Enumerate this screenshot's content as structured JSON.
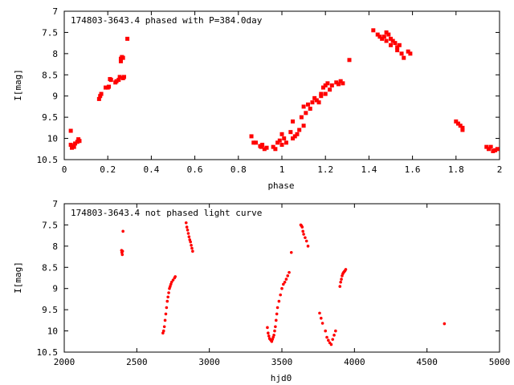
{
  "chart_data": [
    {
      "type": "scatter",
      "title": "174803-3643.4 phased with P=384.0day",
      "xlabel": "phase",
      "ylabel": "I[mag]",
      "xlim": [
        0,
        2
      ],
      "ylim": [
        10.5,
        7
      ],
      "y_inverted": true,
      "grid": false,
      "xticks": [
        "0",
        "0.2",
        "0.4",
        "0.6",
        "0.8",
        "1",
        "1.2",
        "1.4",
        "1.6",
        "1.8",
        "2"
      ],
      "yticks": [
        "7",
        "7.5",
        "8",
        "8.5",
        "9",
        "9.5",
        "10",
        "10.5"
      ],
      "marker_color": "#ff0000",
      "marker": "square",
      "series": [
        {
          "x": [
            0.03,
            0.03,
            0.035,
            0.04,
            0.045,
            0.05,
            0.06,
            0.065,
            0.07,
            0.16,
            0.165,
            0.17,
            0.19,
            0.2,
            0.205,
            0.21,
            0.215,
            0.235,
            0.24,
            0.25,
            0.255,
            0.26,
            0.26,
            0.265,
            0.27,
            0.27,
            0.275,
            0.29,
            0.86,
            0.87,
            0.88,
            0.9,
            0.905,
            0.91,
            0.92,
            0.93,
            0.96,
            0.97,
            0.98,
            0.99,
            1.0,
            1.0,
            1.01,
            1.02,
            1.04,
            1.05,
            1.05,
            1.06,
            1.07,
            1.08,
            1.09,
            1.1,
            1.1,
            1.11,
            1.12,
            1.13,
            1.14,
            1.15,
            1.16,
            1.17,
            1.18,
            1.18,
            1.19,
            1.2,
            1.2,
            1.21,
            1.22,
            1.23,
            1.25,
            1.26,
            1.27,
            1.28,
            1.31,
            1.42,
            1.44,
            1.45,
            1.46,
            1.47,
            1.48,
            1.48,
            1.49,
            1.5,
            1.5,
            1.51,
            1.52,
            1.53,
            1.53,
            1.54,
            1.55,
            1.56,
            1.58,
            1.59,
            1.8,
            1.81,
            1.82,
            1.83,
            1.83,
            1.94,
            1.95,
            1.96,
            1.97,
            1.98,
            1.99
          ],
          "y": [
            9.82,
            10.15,
            10.22,
            10.18,
            10.2,
            10.12,
            10.08,
            10.02,
            10.06,
            9.07,
            9.0,
            8.95,
            8.8,
            8.8,
            8.78,
            8.6,
            8.62,
            8.68,
            8.65,
            8.62,
            8.55,
            8.18,
            8.12,
            8.08,
            8.1,
            8.58,
            8.55,
            7.65,
            9.95,
            10.1,
            10.1,
            10.18,
            10.2,
            10.15,
            10.25,
            10.22,
            10.2,
            10.25,
            10.1,
            10.05,
            9.9,
            10.15,
            10.0,
            10.1,
            9.85,
            9.6,
            10.0,
            9.95,
            9.9,
            9.8,
            9.5,
            9.25,
            9.7,
            9.4,
            9.2,
            9.3,
            9.15,
            9.05,
            9.1,
            9.15,
            8.95,
            9.0,
            8.8,
            8.75,
            8.95,
            8.7,
            8.85,
            8.75,
            8.68,
            8.72,
            8.65,
            8.7,
            8.15,
            7.45,
            7.55,
            7.6,
            7.65,
            7.6,
            7.5,
            7.7,
            7.55,
            7.65,
            7.8,
            7.7,
            7.75,
            7.85,
            7.92,
            7.8,
            8.0,
            8.1,
            7.95,
            8.0,
            9.6,
            9.65,
            9.7,
            9.75,
            9.8,
            10.2,
            10.25,
            10.2,
            10.3,
            10.28,
            10.25
          ]
        }
      ]
    },
    {
      "type": "scatter",
      "title": "174803-3643.4 not phased light curve",
      "xlabel": "hjd0",
      "ylabel": "I[mag]",
      "xlim": [
        2000,
        5000
      ],
      "ylim": [
        10.5,
        7
      ],
      "y_inverted": true,
      "grid": false,
      "xticks": [
        "2000",
        "2500",
        "3000",
        "3500",
        "4000",
        "4500",
        "5000"
      ],
      "yticks": [
        "7",
        "7.5",
        "8",
        "8.5",
        "9",
        "9.5",
        "10",
        "10.5"
      ],
      "marker_color": "#ff0000",
      "marker": "dot",
      "series": [
        {
          "x": [
            2395,
            2397,
            2400,
            2402,
            2405,
            2680,
            2685,
            2690,
            2695,
            2700,
            2705,
            2710,
            2715,
            2720,
            2725,
            2730,
            2735,
            2740,
            2750,
            2760,
            2765,
            2840,
            2845,
            2850,
            2855,
            2860,
            2865,
            2870,
            2875,
            2880,
            2885,
            3400,
            3405,
            3410,
            3415,
            3420,
            3425,
            3430,
            3435,
            3440,
            3445,
            3450,
            3455,
            3460,
            3465,
            3470,
            3480,
            3490,
            3500,
            3510,
            3520,
            3530,
            3540,
            3550,
            3565,
            3630,
            3635,
            3640,
            3645,
            3650,
            3660,
            3670,
            3680,
            3760,
            3770,
            3780,
            3800,
            3810,
            3820,
            3830,
            3840,
            3850,
            3860,
            3870,
            3900,
            3905,
            3910,
            3915,
            3920,
            3925,
            3930,
            3935,
            3940,
            4620
          ],
          "y": [
            8.1,
            8.15,
            8.2,
            8.12,
            7.65,
            10.05,
            10.0,
            9.9,
            9.75,
            9.6,
            9.45,
            9.3,
            9.2,
            9.1,
            9.0,
            8.95,
            8.9,
            8.85,
            8.8,
            8.75,
            8.72,
            7.45,
            7.55,
            7.62,
            7.7,
            7.78,
            7.85,
            7.9,
            7.98,
            8.05,
            8.12,
            9.92,
            10.05,
            10.12,
            10.18,
            10.2,
            10.22,
            10.25,
            10.2,
            10.15,
            10.1,
            10.0,
            9.9,
            9.75,
            9.6,
            9.45,
            9.3,
            9.15,
            9.0,
            8.9,
            8.85,
            8.78,
            8.7,
            8.62,
            8.15,
            7.5,
            7.52,
            7.55,
            7.65,
            7.72,
            7.8,
            7.88,
            8.0,
            9.58,
            9.7,
            9.82,
            10.0,
            10.15,
            10.22,
            10.28,
            10.32,
            10.2,
            10.1,
            10.0,
            8.95,
            8.85,
            8.78,
            8.7,
            8.65,
            8.62,
            8.6,
            8.58,
            8.55,
            9.83
          ]
        }
      ]
    }
  ]
}
